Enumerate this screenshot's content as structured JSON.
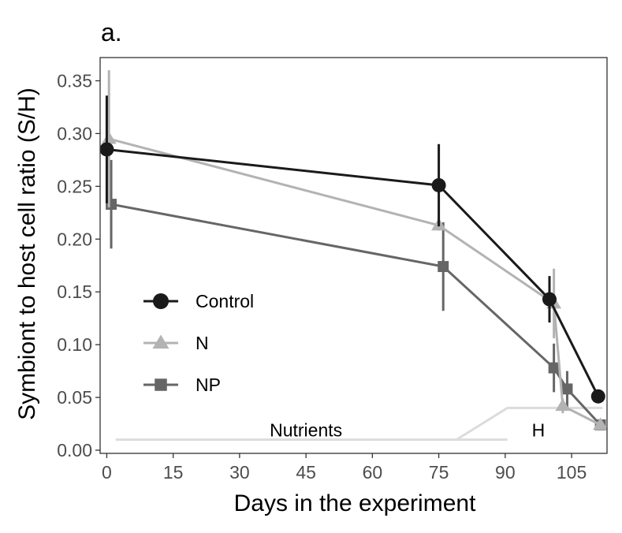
{
  "chart_data": {
    "type": "line",
    "title": "a.",
    "xlabel": "Days in the experiment",
    "ylabel": "Symbiont to host cell ratio (S/H)",
    "xlim": [
      -1.5,
      113
    ],
    "ylim": [
      -0.003,
      0.372
    ],
    "xticks": [
      0,
      15,
      30,
      45,
      60,
      75,
      90,
      105
    ],
    "yticks": [
      0.0,
      0.05,
      0.1,
      0.15,
      0.2,
      0.25,
      0.3,
      0.35
    ],
    "ytick_labels": [
      "0.00",
      "0.05",
      "0.10",
      "0.15",
      "0.20",
      "0.25",
      "0.30",
      "0.35"
    ],
    "grid": false,
    "legend_position": "center-left",
    "series": [
      {
        "name": "Control",
        "marker": "circle",
        "color": "#1a1a1a",
        "points": [
          {
            "x": 0,
            "y": 0.285,
            "err": 0.051
          },
          {
            "x": 75,
            "y": 0.251,
            "err": 0.039
          },
          {
            "x": 100,
            "y": 0.143,
            "err": 0.022
          },
          {
            "x": 111,
            "y": 0.051,
            "err": 0.0
          }
        ]
      },
      {
        "name": "N",
        "marker": "triangle",
        "color": "#b3b3b3",
        "points": [
          {
            "x": 0.5,
            "y": 0.295,
            "err": 0.065
          },
          {
            "x": 75,
            "y": 0.213,
            "err": 0.005
          },
          {
            "x": 101,
            "y": 0.139,
            "err": 0.033
          },
          {
            "x": 103,
            "y": 0.042,
            "err": 0.007
          },
          {
            "x": 111.5,
            "y": 0.024,
            "err": 0.0
          }
        ]
      },
      {
        "name": "NP",
        "marker": "square",
        "color": "#666666",
        "points": [
          {
            "x": 1,
            "y": 0.233,
            "err": 0.042
          },
          {
            "x": 76,
            "y": 0.174,
            "err": 0.042
          },
          {
            "x": 101,
            "y": 0.078,
            "err": 0.023
          },
          {
            "x": 104,
            "y": 0.058,
            "err": 0.017
          },
          {
            "x": 111.5,
            "y": 0.024,
            "err": 0.0
          }
        ]
      }
    ],
    "annotations": [
      {
        "text": "Nutrients",
        "x": 45,
        "y": 0.019
      },
      {
        "text": "H",
        "x": 97.5,
        "y": 0.019
      }
    ],
    "treatment_lines": [
      {
        "name": "Nutrients",
        "color": "#dcdcdc",
        "x": [
          2,
          79,
          81.5,
          90.5
        ],
        "y": [
          0.01,
          0.01,
          0.01,
          0.01
        ]
      },
      {
        "name": "H",
        "color": "#dcdcdc",
        "x": [
          79,
          90.5,
          90.5,
          112
        ],
        "y": [
          0.01,
          0.04,
          0.04,
          0.04
        ]
      }
    ]
  }
}
